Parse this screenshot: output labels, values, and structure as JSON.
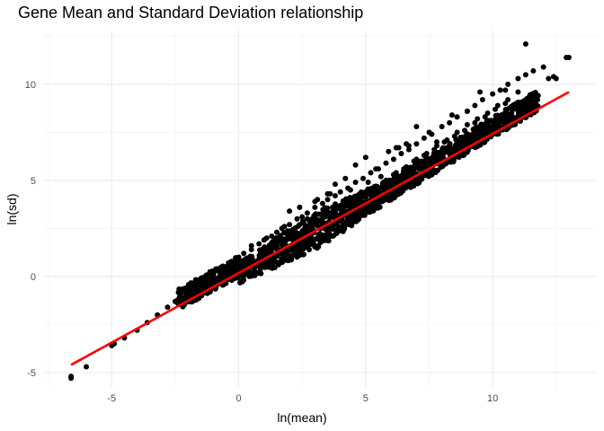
{
  "chart_data": {
    "type": "scatter",
    "title": "Gene Mean and Standard Deviation relationship",
    "xlabel": "ln(mean)",
    "ylabel": "ln(sd)",
    "xlim": [
      -7.7,
      14.1
    ],
    "ylim": [
      -5.8,
      12.8
    ],
    "x_ticks": [
      -5,
      0,
      5,
      10
    ],
    "y_ticks": [
      -5,
      0,
      5,
      10
    ],
    "x_tick_labels": [
      "-5",
      "0",
      "5",
      "10"
    ],
    "y_tick_labels": [
      "-5",
      "0",
      "5",
      "10"
    ],
    "grid": true,
    "legend": "none",
    "point_color": "#000000",
    "series": [
      {
        "type": "scatter",
        "x": [
          -6.6,
          -6.6,
          -6.0,
          -5.0,
          -4.9,
          -4.5,
          -4.0,
          -3.6,
          -3.2,
          -2.8,
          -2.5,
          -2.3,
          -2.0,
          -1.7,
          -1.4,
          -1.0,
          -0.7,
          -0.4,
          0.0,
          0.2,
          0.5,
          0.8,
          1.0,
          1.3,
          1.5,
          1.7,
          2.0,
          2.3,
          2.5,
          2.7,
          3.0,
          3.3,
          3.5,
          3.8,
          4.0,
          4.3,
          4.6,
          4.9,
          5.2,
          5.5,
          5.8,
          6.1,
          6.4,
          6.7,
          7.0,
          7.3,
          7.6,
          8.0,
          8.3,
          8.6,
          9.0,
          9.3,
          9.6,
          10.0,
          10.3,
          10.6,
          11.0,
          11.3,
          11.6,
          12.0,
          12.4,
          12.9,
          -1.5,
          -0.8,
          -0.3,
          0.3,
          0.6,
          1.0,
          1.4,
          1.8,
          2.2,
          2.6,
          3.0,
          3.4,
          3.8,
          4.2,
          4.6,
          5.0,
          5.4,
          5.8,
          6.2,
          6.6,
          7.0,
          7.4,
          7.8,
          8.2,
          8.6,
          9.0,
          9.4,
          9.8,
          10.2,
          10.6,
          11.0,
          -2.0,
          -1.2,
          -0.5,
          0.0,
          0.4,
          0.9,
          1.3,
          1.7,
          2.1,
          2.5,
          2.9,
          3.3,
          3.7,
          4.1,
          4.5,
          4.9,
          5.3,
          5.7,
          6.1,
          6.5,
          6.9,
          7.3,
          7.7,
          8.1,
          8.5,
          8.9,
          9.3,
          9.7,
          10.1,
          10.5,
          3.1,
          3.5,
          3.8,
          4.2,
          4.6,
          5.0,
          5.4,
          5.9,
          6.3,
          6.6,
          7.0,
          7.5,
          7.8,
          8.4,
          9.0,
          9.5,
          10.5,
          11.3,
          12.2,
          12.5,
          13.0,
          6.2,
          6.7,
          2.0,
          2.4,
          3.0,
          3.6,
          4.4,
          5.1,
          5.6,
          0.5,
          1.1,
          1.8
        ],
        "y": [
          -5.3,
          -5.2,
          -4.7,
          -3.6,
          -3.5,
          -3.2,
          -2.8,
          -2.4,
          -2.0,
          -1.6,
          -1.3,
          -1.1,
          -0.8,
          -0.5,
          -0.2,
          0.1,
          0.4,
          0.7,
          1.0,
          1.2,
          1.4,
          1.7,
          1.9,
          2.1,
          2.3,
          2.5,
          2.7,
          3.0,
          3.1,
          3.3,
          3.6,
          3.8,
          4.0,
          4.2,
          4.4,
          4.6,
          4.9,
          5.1,
          5.4,
          5.6,
          5.9,
          6.1,
          6.4,
          6.6,
          6.9,
          7.2,
          7.4,
          7.8,
          8.0,
          8.3,
          8.6,
          8.9,
          9.2,
          9.5,
          9.7,
          10.0,
          10.3,
          10.5,
          10.7,
          10.9,
          10.4,
          11.4,
          -0.9,
          -0.3,
          0.2,
          0.5,
          0.8,
          1.2,
          1.5,
          1.8,
          2.1,
          2.4,
          2.8,
          3.1,
          3.4,
          3.7,
          4.0,
          4.4,
          4.7,
          5.0,
          5.4,
          5.7,
          6.1,
          6.4,
          6.8,
          7.1,
          7.5,
          7.9,
          8.2,
          8.5,
          8.9,
          9.2,
          9.6,
          -1.1,
          -0.6,
          0.0,
          0.5,
          0.8,
          1.1,
          1.4,
          1.7,
          2.0,
          2.3,
          2.6,
          3.0,
          3.3,
          3.6,
          3.9,
          4.2,
          4.6,
          4.9,
          5.3,
          5.6,
          6.0,
          6.3,
          6.6,
          7.0,
          7.3,
          7.6,
          8.0,
          8.3,
          8.7,
          9.0,
          4.0,
          4.3,
          4.8,
          5.1,
          5.8,
          6.2,
          5.6,
          6.5,
          6.7,
          6.9,
          7.8,
          7.5,
          7.0,
          8.4,
          8.6,
          9.6,
          9.7,
          12.1,
          10.3,
          10.3,
          11.4,
          6.7,
          6.8,
          3.4,
          3.6,
          3.9,
          4.3,
          4.5,
          4.9,
          5.2,
          1.6,
          2.0,
          2.6
        ]
      },
      {
        "name": "",
        "type": "line",
        "x": [
          -6.6,
          13.0
        ],
        "y": [
          -4.6,
          9.6
        ],
        "color": "#ff0000"
      }
    ]
  }
}
